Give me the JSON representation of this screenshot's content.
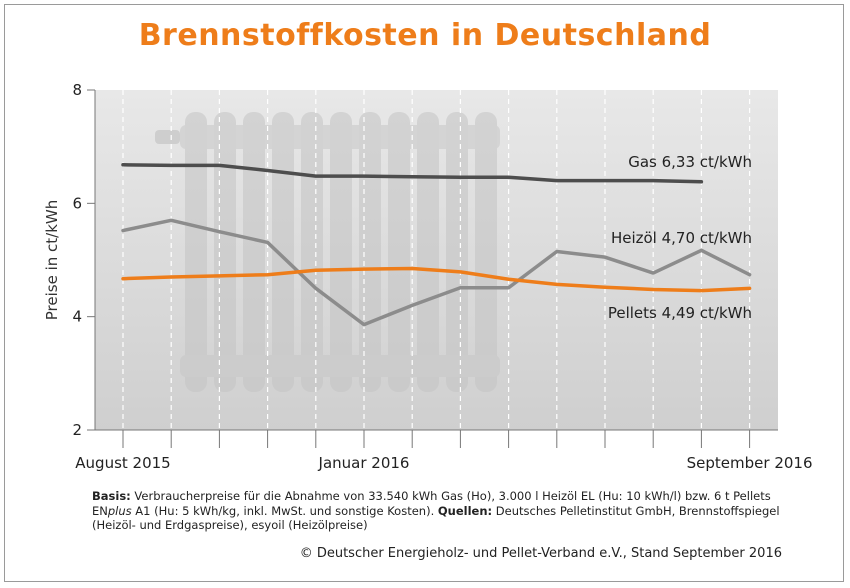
{
  "title": "Brennstoffkosten in Deutschland",
  "chart_data": {
    "type": "line",
    "title": "Brennstoffkosten in Deutschland",
    "ylabel": "Preise in ct/kWh",
    "xlabel": "",
    "ylim": [
      2,
      8
    ],
    "yticks": [
      2,
      4,
      6,
      8
    ],
    "grid": "vertical dashed",
    "x": [
      "2015-08",
      "2015-09",
      "2015-10",
      "2015-11",
      "2015-12",
      "2016-01",
      "2016-02",
      "2016-03",
      "2016-04",
      "2016-05",
      "2016-06",
      "2016-07",
      "2016-08",
      "2016-09"
    ],
    "xtick_labels": [
      "August 2015",
      "Januar 2016",
      "September 2016"
    ],
    "xtick_positions": [
      "2015-08",
      "2016-01",
      "2016-09"
    ],
    "series": [
      {
        "name": "Gas",
        "label": "Gas 6,33 ct/kWh",
        "color": "#4d4d4d",
        "values": [
          6.68,
          6.67,
          6.67,
          6.58,
          6.48,
          6.48,
          6.47,
          6.46,
          6.46,
          6.4,
          6.4,
          6.4,
          6.38,
          null
        ]
      },
      {
        "name": "Heizöl",
        "label": "Heizöl 4,70 ct/kWh",
        "color": "#8c8c8c",
        "values": [
          5.52,
          5.7,
          5.5,
          5.31,
          4.5,
          3.86,
          4.2,
          4.51,
          4.51,
          5.15,
          5.05,
          4.77,
          5.17,
          4.74
        ]
      },
      {
        "name": "Pellets",
        "label": "Pellets 4,49 ct/kWh",
        "color": "#ee7d1a",
        "values": [
          4.67,
          4.7,
          4.72,
          4.74,
          4.82,
          4.84,
          4.85,
          4.79,
          4.66,
          4.57,
          4.52,
          4.48,
          4.46,
          4.5
        ]
      }
    ]
  },
  "footer": {
    "basis_label": "Basis:",
    "basis_text": " Verbraucherpreise für die Abnahme von 33.540 kWh Gas (Ho), 3.000 l Heizöl EL (Hu: 10 kWh/l) bzw. 6 t Pellets EN",
    "plus": "plus",
    "basis_text2": " A1 (Hu: 5 kWh/kg, inkl. MwSt. und sonstige Kosten).",
    "sources_label": "Quellen:",
    "sources_text": " Deutsches Pelletinstitut GmbH, Brennstoffspiegel (Heizöl- und Erdgaspreise), esyoil (Heizölpreise)"
  },
  "copyright": "© Deutscher Energieholz- und Pellet-Verband e.V., Stand September 2016"
}
